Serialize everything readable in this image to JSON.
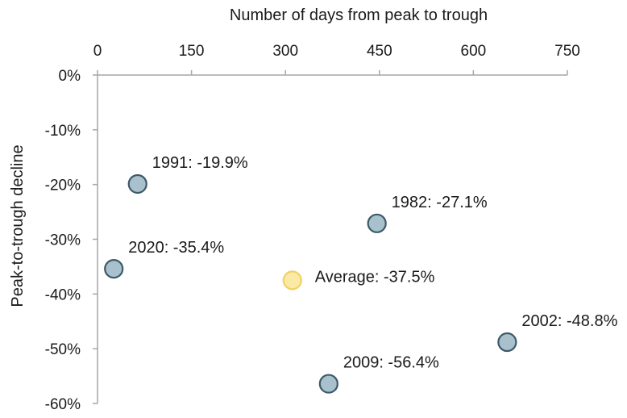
{
  "chart_data": {
    "type": "scatter",
    "title": "",
    "xlabel": "Number of days from peak to trough",
    "ylabel": "Peak-to-trough decline",
    "xlim": [
      0,
      750
    ],
    "ylim": [
      -60,
      0
    ],
    "x_ticks": [
      0,
      150,
      300,
      450,
      600,
      750
    ],
    "x_tick_labels": [
      "0",
      "150",
      "300",
      "450",
      "600",
      "750"
    ],
    "y_ticks": [
      0,
      -10,
      -20,
      -30,
      -40,
      -50,
      -60
    ],
    "y_tick_labels": [
      "0%",
      "-10%",
      "-20%",
      "-30%",
      "-40%",
      "-50%",
      "-60%"
    ],
    "x_axis_position": "top",
    "grid": false,
    "points": [
      {
        "label": "1991: -19.9%",
        "x": 64,
        "y": -19.9,
        "color": "#a9c1cc",
        "edge": "#3d5a68"
      },
      {
        "label": "1982: -27.1%",
        "x": 446,
        "y": -27.1,
        "color": "#a9c1cc",
        "edge": "#3d5a68"
      },
      {
        "label": "2020: -35.4%",
        "x": 26,
        "y": -35.4,
        "color": "#a9c1cc",
        "edge": "#3d5a68"
      },
      {
        "label": "Average: -37.5%",
        "x": 311,
        "y": -37.5,
        "color": "#fbe9a6",
        "edge": "#f2d060"
      },
      {
        "label": "2002: -48.8%",
        "x": 654,
        "y": -48.8,
        "color": "#a9c1cc",
        "edge": "#3d5a68"
      },
      {
        "label": "2009: -56.4%",
        "x": 369,
        "y": -56.4,
        "color": "#a9c1cc",
        "edge": "#3d5a68"
      }
    ]
  }
}
